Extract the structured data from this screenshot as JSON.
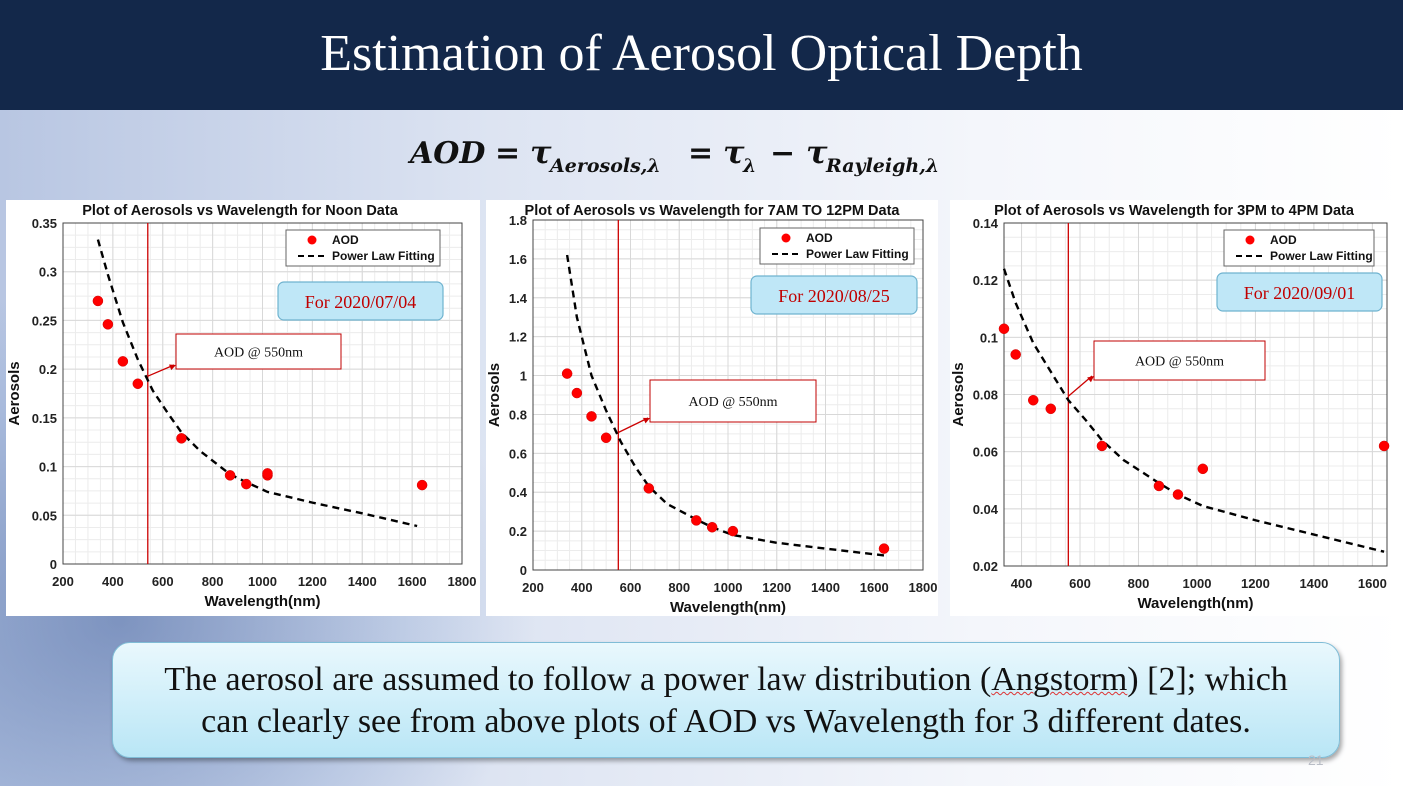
{
  "slide": {
    "title": "Estimation of Aerosol Optical Depth",
    "formula": {
      "lhs": "AOD",
      "eq": "=",
      "tau": "τ",
      "sub1": "Aerosols,λ",
      "sub2": "λ",
      "minus": "−",
      "sub3": "Rayleigh,λ"
    },
    "note_line1": "The aerosol are assumed to follow a power law distribution (",
    "note_word": "Angstorm",
    "note_line1_end": ") [2]; which",
    "note_line2": "can clearly see from above plots of AOD vs Wavelength for 3 different dates.",
    "page_number": "21"
  },
  "colors": {
    "title_bar": "#13284a",
    "marker": "#ff0000",
    "fit": "#000000",
    "vline": "#cc0000",
    "callout_border": "#c00000",
    "date_box_text": "#c00000",
    "date_box_fill": "#bfe7f7"
  },
  "chart_data": [
    {
      "type": "scatter",
      "title": "Plot of Aerosols vs Wavelength for Noon Data",
      "xlabel": "Wavelength(nm)",
      "ylabel": "Aerosols",
      "xlim": [
        200,
        1800
      ],
      "ylim": [
        0,
        0.35
      ],
      "xticks": [
        200,
        400,
        600,
        800,
        1000,
        1200,
        1400,
        1600,
        1800
      ],
      "yticks": [
        0,
        0.05,
        0.1,
        0.15,
        0.2,
        0.25,
        0.3,
        0.35
      ],
      "ytick_labels": [
        "0",
        "0.05",
        "0.1",
        "0.15",
        "0.2",
        "0.25",
        "0.3",
        "0.35"
      ],
      "grid": true,
      "legend_position": "top-right",
      "series": [
        {
          "name": "AOD",
          "style": "markers",
          "x": [
            340,
            380,
            440,
            500,
            675,
            870,
            935,
            1020,
            1020,
            1640
          ],
          "y": [
            0.27,
            0.246,
            0.208,
            0.185,
            0.129,
            0.091,
            0.082,
            0.091,
            0.093,
            0.081
          ]
        },
        {
          "name": "Power Law Fitting",
          "style": "dashed",
          "x": [
            340,
            380,
            440,
            500,
            560,
            620,
            675,
            750,
            870,
            935,
            1020,
            1200,
            1400,
            1620
          ],
          "y": [
            0.333,
            0.297,
            0.248,
            0.21,
            0.178,
            0.155,
            0.135,
            0.116,
            0.092,
            0.084,
            0.074,
            0.063,
            0.052,
            0.039
          ]
        }
      ],
      "date_label": "For 2020/07/04",
      "annotation": "AOD @ 550nm",
      "vline_x": 540
    },
    {
      "type": "scatter",
      "title": "Plot of Aerosols vs Wavelength for 7AM TO 12PM Data",
      "xlabel": "Wavelength(nm)",
      "ylabel": "Aerosols",
      "xlim": [
        200,
        1800
      ],
      "ylim": [
        0,
        1.8
      ],
      "xticks": [
        200,
        400,
        600,
        800,
        1000,
        1200,
        1400,
        1600,
        1800
      ],
      "yticks": [
        0,
        0.2,
        0.4,
        0.6,
        0.8,
        1.0,
        1.2,
        1.4,
        1.6,
        1.8
      ],
      "ytick_labels": [
        "0",
        "0.2",
        "0.4",
        "0.6",
        "0.8",
        "1",
        "1.2",
        "1.4",
        "1.6",
        "1.8"
      ],
      "grid": true,
      "legend_position": "top-right",
      "series": [
        {
          "name": "AOD",
          "style": "markers",
          "x": [
            340,
            380,
            440,
            500,
            675,
            870,
            935,
            1020,
            1640
          ],
          "y": [
            1.01,
            0.91,
            0.79,
            0.68,
            0.42,
            0.255,
            0.22,
            0.2,
            0.11
          ]
        },
        {
          "name": "Power Law Fitting",
          "style": "dashed",
          "x": [
            340,
            380,
            440,
            500,
            560,
            620,
            675,
            750,
            870,
            935,
            1020,
            1200,
            1400,
            1640
          ],
          "y": [
            1.62,
            1.3,
            1.0,
            0.82,
            0.66,
            0.53,
            0.43,
            0.34,
            0.26,
            0.22,
            0.18,
            0.14,
            0.11,
            0.075
          ]
        }
      ],
      "date_label": "For 2020/08/25",
      "annotation": "AOD @ 550nm",
      "vline_x": 550
    },
    {
      "type": "scatter",
      "title": "Plot of Aerosols vs Wavelength for 3PM to 4PM Data",
      "xlabel": "Wavelength(nm)",
      "ylabel": "Aerosols",
      "xlim": [
        340,
        1650
      ],
      "ylim": [
        0.02,
        0.14
      ],
      "xticks": [
        400,
        600,
        800,
        1000,
        1200,
        1400,
        1600
      ],
      "yticks": [
        0.02,
        0.04,
        0.06,
        0.08,
        0.1,
        0.12,
        0.14
      ],
      "ytick_labels": [
        "0.02",
        "0.04",
        "0.06",
        "0.08",
        "0.1",
        "0.12",
        "0.14"
      ],
      "grid": true,
      "legend_position": "top-right",
      "series": [
        {
          "name": "AOD",
          "style": "markers",
          "x": [
            340,
            380,
            440,
            500,
            675,
            870,
            935,
            1020,
            1640
          ],
          "y": [
            0.103,
            0.094,
            0.078,
            0.075,
            0.062,
            0.048,
            0.045,
            0.054,
            0.062
          ]
        },
        {
          "name": "Power Law Fitting",
          "style": "dashed",
          "x": [
            340,
            380,
            440,
            500,
            560,
            620,
            675,
            750,
            870,
            935,
            1020,
            1200,
            1400,
            1640
          ],
          "y": [
            0.124,
            0.112,
            0.098,
            0.088,
            0.078,
            0.071,
            0.064,
            0.057,
            0.049,
            0.045,
            0.041,
            0.036,
            0.031,
            0.025
          ]
        }
      ],
      "date_label": "For 2020/09/01",
      "annotation": "AOD @ 550nm",
      "vline_x": 560
    }
  ]
}
